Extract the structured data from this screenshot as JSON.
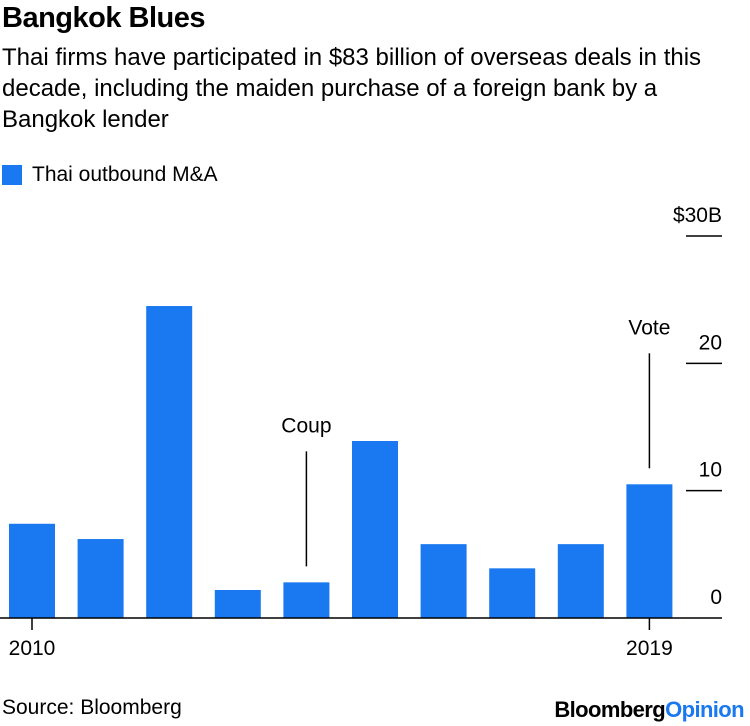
{
  "header": {
    "title": "Bangkok Blues",
    "subtitle": "Thai firms have participated in $83 billion of overseas deals in this decade, including the maiden purchase of a foreign bank by a Bangkok lender"
  },
  "footer": {
    "source": "Source: Bloomberg",
    "brand_bloomberg": "Bloomberg",
    "brand_opinion": "Opinion"
  },
  "colors": {
    "bar": "#1a78f0",
    "axis": "#000000",
    "brand_accent": "#1a78f0"
  },
  "chart_data": {
    "type": "bar",
    "title": "Bangkok Blues",
    "legend": [
      "Thai outbound M&A"
    ],
    "categories": [
      "2010",
      "2011",
      "2012",
      "2013",
      "2014",
      "2015",
      "2016",
      "2017",
      "2018",
      "2019"
    ],
    "x_tick_labels": [
      "2010",
      "",
      "",
      "",
      "",
      "",
      "",
      "",
      "",
      "2019"
    ],
    "series": [
      {
        "name": "Thai outbound M&A",
        "values": [
          7.4,
          6.2,
          24.5,
          2.2,
          2.8,
          13.9,
          5.8,
          3.9,
          5.8,
          10.5
        ]
      }
    ],
    "ylim": [
      0,
      30
    ],
    "y_ticks": [
      0,
      10,
      20,
      30
    ],
    "y_tick_labels": [
      "0",
      "10",
      "20",
      "$30B"
    ],
    "y_axis_side": "right",
    "annotations": [
      {
        "label": "Coup",
        "category": "2014"
      },
      {
        "label": "Vote",
        "category": "2019"
      }
    ]
  }
}
